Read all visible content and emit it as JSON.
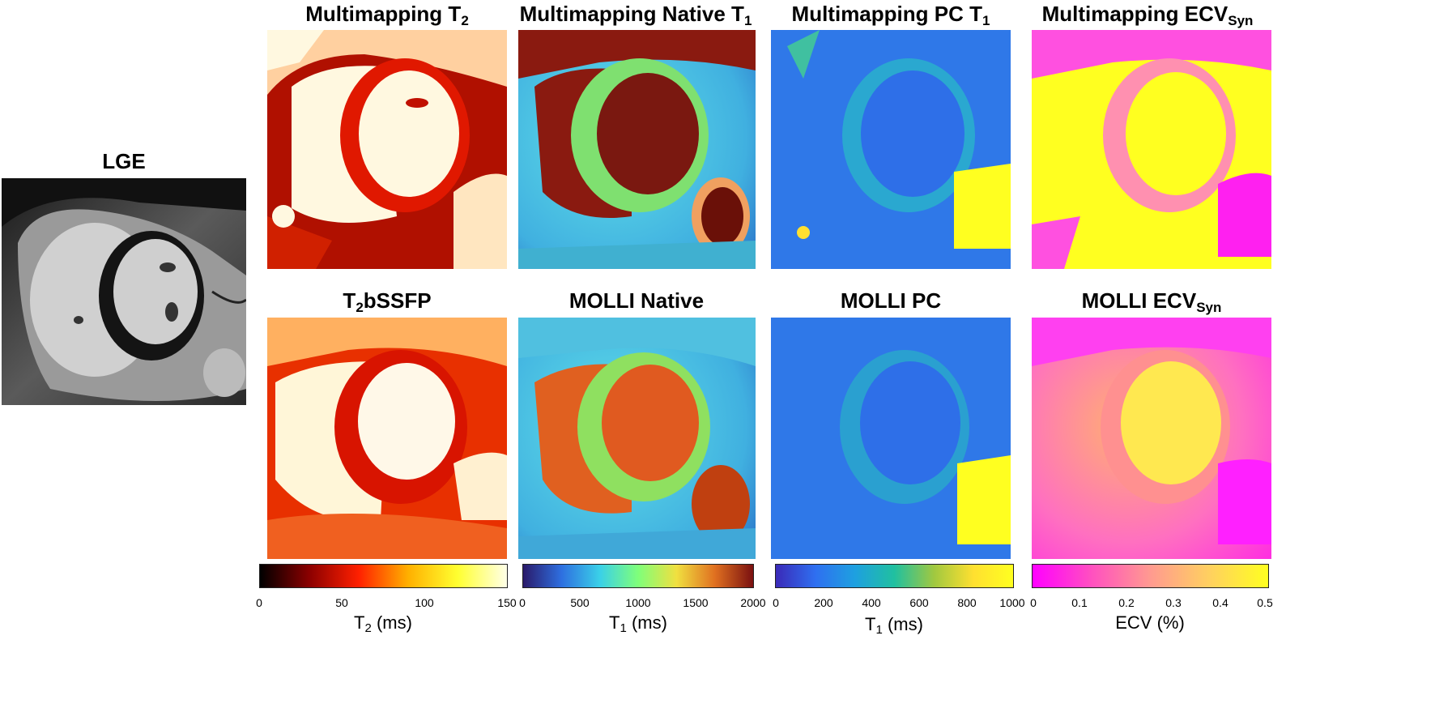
{
  "titles": {
    "lge": "LGE",
    "mm_t2_main": "Multimapping T",
    "mm_t2_sub": "2",
    "mm_native_main": "Multimapping Native T",
    "mm_native_sub": "1",
    "mm_pc_main": "Multimapping PC T",
    "mm_pc_sub": "1",
    "mm_ecv_main": "Multimapping ECV",
    "mm_ecv_sub": "Syn",
    "t2bssfp_pre": "T",
    "t2bssfp_sub": "2",
    "t2bssfp_post": "bSSFP",
    "molli_native": "MOLLI Native",
    "molli_pc": "MOLLI PC",
    "molli_ecv_main": "MOLLI ECV",
    "molli_ecv_sub": "Syn"
  },
  "colorbars": {
    "t2": {
      "ticks": [
        "0",
        "50",
        "100",
        "150"
      ],
      "unit_pre": "T",
      "unit_sub": "2",
      "unit_post": " (ms)",
      "colors": [
        "#000000",
        "#8b0000",
        "#ff2000",
        "#ffb000",
        "#ffff30",
        "#ffffe8"
      ]
    },
    "t1_native": {
      "ticks": [
        "0",
        "500",
        "1000",
        "1500",
        "2000"
      ],
      "unit_pre": "T",
      "unit_sub": "1",
      "unit_post": " (ms)",
      "colors": [
        "#2a1a6a",
        "#2e6fe0",
        "#3ad0e8",
        "#7fff7a",
        "#f0e040",
        "#e07020",
        "#7a1010"
      ]
    },
    "t1_pc": {
      "ticks": [
        "0",
        "200",
        "400",
        "600",
        "800",
        "1000"
      ],
      "unit_pre": "T",
      "unit_sub": "1",
      "unit_post": " (ms)",
      "colors": [
        "#3a2ab8",
        "#2f6ff0",
        "#1ea0e0",
        "#20c0a0",
        "#a0c840",
        "#ffe030",
        "#ffff20"
      ]
    },
    "ecv": {
      "ticks": [
        "0",
        "0.1",
        "0.2",
        "0.3",
        "0.4",
        "0.5"
      ],
      "unit_text": "ECV (%)",
      "colors": [
        "#ff00ff",
        "#ff50c0",
        "#ff9a90",
        "#ffd060",
        "#ffff20"
      ]
    }
  }
}
